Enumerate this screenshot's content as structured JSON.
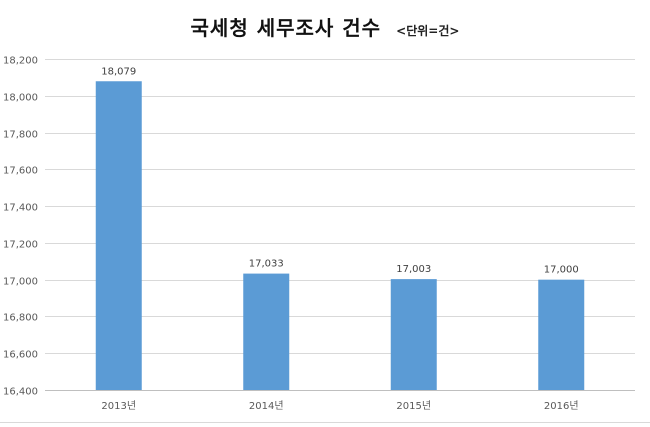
{
  "chart_data": {
    "type": "bar",
    "title": "국세청 세무조사 건수",
    "subtitle": "<단위=건>",
    "categories": [
      "2013년",
      "2014년",
      "2015년",
      "2016년"
    ],
    "values": [
      18079,
      17033,
      17003,
      17000
    ],
    "data_labels": [
      "18,079",
      "17,033",
      "17,003",
      "17,000"
    ],
    "ylim": [
      16400,
      18200
    ],
    "yticks": [
      16400,
      16600,
      16800,
      17000,
      17200,
      17400,
      17600,
      17800,
      18000,
      18200
    ],
    "ytick_labels": [
      "16,400",
      "16,600",
      "16,800",
      "17,000",
      "17,200",
      "17,400",
      "17,600",
      "17,800",
      "18,000",
      "18,200"
    ],
    "grid": true,
    "bar_color": "#5b9bd5"
  }
}
